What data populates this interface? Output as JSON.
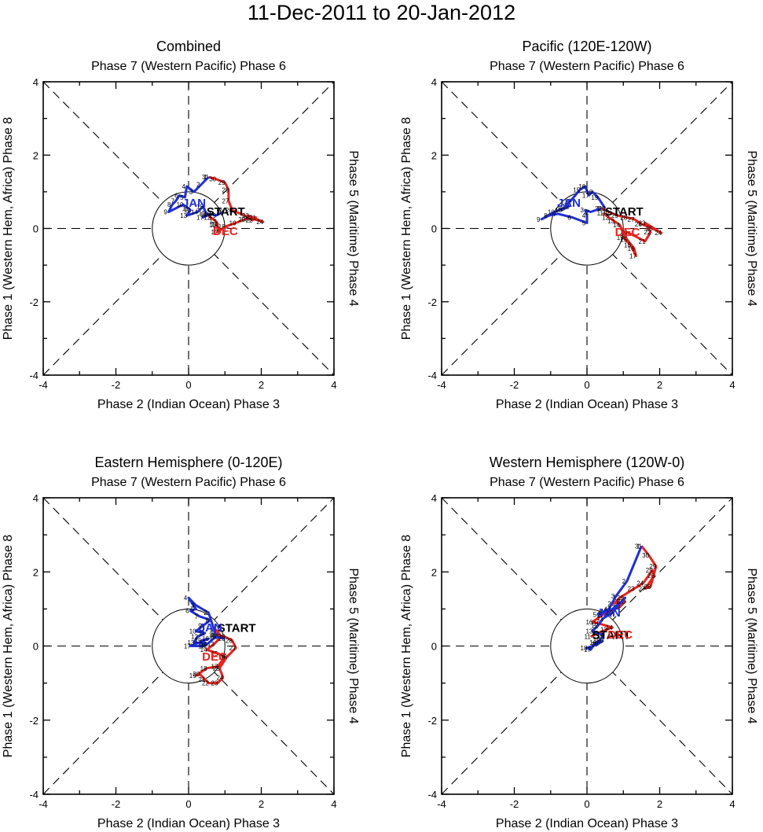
{
  "title": "11-Dec-2011 to 20-Jan-2012",
  "colors": {
    "dec": "#e8231d",
    "jan": "#1f2fd6",
    "start": "#000000",
    "axis": "#000000"
  },
  "labels": {
    "top": "Phase 7 (Western Pacific) Phase 6",
    "bottom": "Phase 2 (Indian Ocean) Phase 3",
    "left": "Phase 1 (Western Hem, Africa) Phase 8",
    "right": "Phase 5 (Maritime) Phase 4",
    "start": "START",
    "dec": "DEC",
    "jan": "JAN"
  },
  "chart_data": [
    {
      "type": "line",
      "title": "Combined",
      "xlim": [
        -4,
        4
      ],
      "ylim": [
        -4,
        4
      ],
      "x_ticks": [
        "-4",
        "-2",
        "0",
        "2",
        "4"
      ],
      "y_ticks": [
        "-4",
        "-2",
        "0",
        "2",
        "4"
      ],
      "series": [
        {
          "name": "DEC",
          "days": [
            11,
            12,
            13,
            14,
            15,
            16,
            17,
            18,
            19,
            20,
            21,
            22,
            23,
            24,
            25,
            26,
            27,
            28,
            29,
            30,
            31
          ],
          "x": [
            0.45,
            0.6,
            0.75,
            0.8,
            0.75,
            0.85,
            0.8,
            1.0,
            1.3,
            1.55,
            1.85,
            1.75,
            1.65,
            2.05,
            1.7,
            1.2,
            1.1,
            1.1,
            1.0,
            0.75,
            0.55
          ],
          "y": [
            0.42,
            0.3,
            0.2,
            0.12,
            0.1,
            0.0,
            -0.1,
            0.05,
            0.15,
            0.25,
            0.3,
            0.22,
            0.35,
            0.18,
            0.28,
            0.5,
            0.75,
            1.05,
            1.25,
            1.35,
            1.4
          ]
        },
        {
          "name": "JAN",
          "days": [
            1,
            2,
            3,
            4,
            5,
            6,
            7,
            8,
            9,
            10,
            11,
            12,
            13,
            14,
            15,
            16,
            17,
            18,
            19,
            20
          ],
          "x": [
            0.55,
            0.35,
            0.15,
            -0.05,
            -0.1,
            -0.25,
            -0.35,
            -0.45,
            -0.55,
            -0.15,
            0.0,
            0.05,
            -0.05,
            0.25,
            0.4,
            0.5,
            0.4,
            0.6,
            0.75,
            0.95
          ],
          "y": [
            1.4,
            1.2,
            1.0,
            1.15,
            0.85,
            0.9,
            0.75,
            0.65,
            0.45,
            0.65,
            0.55,
            0.5,
            0.35,
            0.45,
            0.6,
            0.38,
            0.3,
            0.4,
            0.35,
            0.45
          ]
        }
      ]
    },
    {
      "type": "line",
      "title": "Pacific (120E-120W)",
      "xlim": [
        -4,
        4
      ],
      "ylim": [
        -4,
        4
      ],
      "x_ticks": [
        "-4",
        "-2",
        "0",
        "2",
        "4"
      ],
      "y_ticks": [
        "-4",
        "-2",
        "0",
        "2",
        "4"
      ],
      "series": [
        {
          "name": "DEC",
          "days": [
            11,
            12,
            13,
            14,
            15,
            16,
            17,
            18,
            19,
            20,
            21,
            22,
            23,
            24,
            25,
            26,
            27,
            28,
            29,
            30,
            31
          ],
          "x": [
            0.45,
            0.6,
            0.75,
            0.9,
            1.1,
            1.3,
            1.35,
            1.2,
            1.0,
            1.1,
            1.6,
            1.75,
            1.6,
            2.05,
            1.8,
            1.5,
            1.3,
            1.1,
            0.85,
            0.6,
            0.4
          ],
          "y": [
            0.42,
            0.3,
            0.2,
            0.1,
            -0.3,
            -0.55,
            -0.75,
            -0.45,
            -0.25,
            -0.1,
            -0.35,
            -0.1,
            0.15,
            -0.12,
            0.0,
            0.12,
            0.25,
            0.3,
            0.35,
            0.45,
            0.55
          ]
        },
        {
          "name": "JAN",
          "days": [
            1,
            2,
            3,
            4,
            5,
            6,
            7,
            8,
            9,
            10,
            11,
            12,
            13,
            14,
            15,
            16,
            17,
            18,
            19,
            20
          ],
          "x": [
            0.4,
            0.1,
            -0.05,
            0.0,
            0.0,
            -0.4,
            -0.8,
            -1.05,
            -1.25,
            -0.9,
            -0.65,
            -0.5,
            -0.7,
            -0.45,
            -0.2,
            -0.05,
            0.05,
            0.15,
            0.3,
            0.5
          ],
          "y": [
            0.55,
            0.45,
            0.5,
            0.35,
            0.15,
            0.3,
            0.4,
            0.35,
            0.25,
            0.45,
            0.55,
            0.6,
            0.5,
            0.75,
            1.05,
            1.15,
            0.9,
            1.0,
            0.85,
            0.55
          ]
        }
      ]
    },
    {
      "type": "line",
      "title": "Eastern Hemisphere (0-120E)",
      "xlim": [
        -4,
        4
      ],
      "ylim": [
        -4,
        4
      ],
      "x_ticks": [
        "-4",
        "-2",
        "0",
        "2",
        "4"
      ],
      "y_ticks": [
        "-4",
        "-2",
        "0",
        "2",
        "4"
      ],
      "series": [
        {
          "name": "DEC",
          "days": [
            11,
            12,
            13,
            14,
            15,
            16,
            17,
            18,
            19,
            20,
            21,
            22,
            23,
            24,
            25,
            26,
            27,
            28,
            29,
            30,
            31
          ],
          "x": [
            0.75,
            0.9,
            0.7,
            0.5,
            0.8,
            1.0,
            0.8,
            0.5,
            0.2,
            0.3,
            0.45,
            0.55,
            0.8,
            0.95,
            0.85,
            1.05,
            1.3,
            1.2,
            1.0,
            0.8,
            0.75
          ],
          "y": [
            0.45,
            0.25,
            0.05,
            -0.1,
            -0.2,
            -0.3,
            -0.55,
            -0.6,
            -0.8,
            -0.75,
            -0.9,
            -1.0,
            -1.0,
            -0.85,
            -0.6,
            -0.3,
            -0.05,
            0.15,
            0.25,
            0.3,
            0.3
          ]
        },
        {
          "name": "JAN",
          "days": [
            1,
            2,
            3,
            4,
            5,
            6,
            7,
            8,
            9,
            10,
            11,
            12,
            13,
            14,
            15,
            16,
            17,
            18,
            19,
            20
          ],
          "x": [
            0.75,
            0.55,
            0.2,
            0.0,
            0.2,
            0.05,
            0.3,
            0.6,
            0.4,
            0.2,
            0.45,
            0.25,
            0.15,
            0.5,
            0.35,
            0.55,
            0.05,
            0.45,
            0.75,
            1.0
          ],
          "y": [
            0.3,
            0.9,
            1.1,
            1.3,
            1.0,
            0.95,
            0.8,
            0.7,
            0.55,
            0.4,
            0.35,
            0.25,
            0.1,
            0.05,
            0.15,
            0.2,
            0.0,
            0.0,
            0.25,
            0.2
          ]
        }
      ]
    },
    {
      "type": "line",
      "title": "Western Hemisphere (120W-0)",
      "xlim": [
        -4,
        4
      ],
      "ylim": [
        -4,
        4
      ],
      "x_ticks": [
        "-4",
        "-2",
        "0",
        "2",
        "4"
      ],
      "y_ticks": [
        "-4",
        "-2",
        "0",
        "2",
        "4"
      ],
      "series": [
        {
          "name": "DEC",
          "days": [
            11,
            12,
            13,
            14,
            15,
            16,
            17,
            18,
            19,
            20,
            21,
            22,
            23,
            24,
            25,
            26,
            27,
            28,
            29,
            30,
            31
          ],
          "x": [
            0.1,
            0.3,
            0.55,
            0.7,
            0.35,
            0.15,
            0.45,
            0.65,
            0.9,
            1.05,
            0.75,
            0.9,
            1.3,
            1.55,
            1.8,
            1.85,
            1.6,
            1.75,
            1.9,
            1.7,
            1.5
          ],
          "y": [
            0.25,
            0.35,
            0.45,
            0.5,
            0.6,
            0.65,
            0.85,
            0.95,
            1.05,
            1.2,
            1.15,
            1.3,
            1.55,
            1.7,
            2.05,
            1.9,
            1.55,
            1.6,
            2.15,
            2.45,
            2.7
          ]
        },
        {
          "name": "JAN",
          "days": [
            1,
            2,
            3,
            4,
            5,
            6,
            7,
            8,
            9,
            10,
            11,
            12,
            13,
            14,
            15,
            16,
            17,
            18,
            19,
            20
          ],
          "x": [
            1.5,
            1.1,
            0.8,
            0.6,
            0.3,
            0.45,
            0.7,
            0.95,
            1.05,
            0.7,
            0.45,
            0.3,
            0.15,
            0.45,
            0.35,
            0.25,
            0.1,
            0.0,
            0.3,
            0.45
          ],
          "y": [
            2.7,
            1.75,
            1.35,
            1.0,
            0.85,
            0.9,
            1.0,
            1.2,
            1.3,
            0.9,
            0.75,
            0.55,
            0.4,
            0.3,
            0.15,
            0.1,
            -0.1,
            -0.05,
            0.05,
            0.15
          ]
        }
      ]
    }
  ]
}
